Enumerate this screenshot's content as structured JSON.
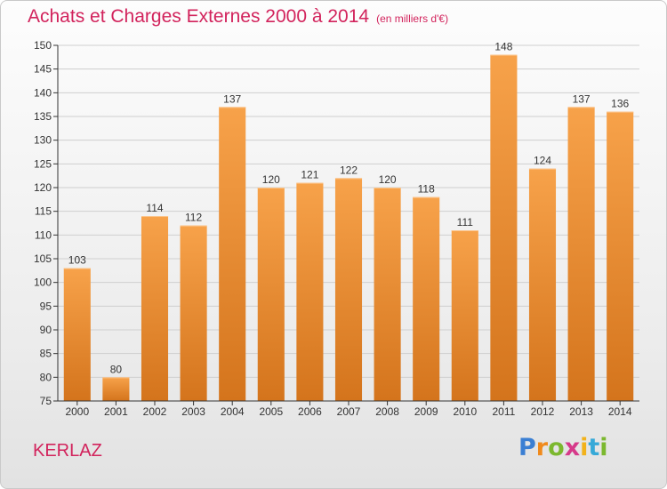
{
  "header": {
    "title": "Achats et Charges Externes 2000 à 2014",
    "unit": "(en milliers d'€)"
  },
  "commune": "KERLAZ",
  "brand": {
    "letters": [
      "P",
      "r",
      "o",
      "x",
      "i",
      "t",
      "i"
    ],
    "colors": [
      "#3b7fd3",
      "#f08a1c",
      "#7cb82f",
      "#d63a8a",
      "#f2b21b",
      "#36a9d8",
      "#7cb82f"
    ]
  },
  "colors": {
    "title": "#d2235c",
    "bar_light": "#f7a24a",
    "bar_dark": "#d4741c",
    "grid": "#cfcfcf",
    "axis": "#333333"
  },
  "chart_data": {
    "type": "bar",
    "title": "Achats et Charges Externes 2000 à 2014",
    "subtitle": "(en milliers d'€)",
    "categories": [
      "2000",
      "2001",
      "2002",
      "2003",
      "2004",
      "2005",
      "2006",
      "2007",
      "2008",
      "2009",
      "2010",
      "2011",
      "2012",
      "2013",
      "2014"
    ],
    "values": [
      103,
      80,
      114,
      112,
      137,
      120,
      121,
      122,
      120,
      118,
      111,
      148,
      124,
      137,
      136
    ],
    "ylim": [
      75,
      150
    ],
    "yticks": [
      75,
      80,
      85,
      90,
      95,
      100,
      105,
      110,
      115,
      120,
      125,
      130,
      135,
      140,
      145,
      150
    ],
    "grid": true,
    "xlabel": "",
    "ylabel": ""
  }
}
